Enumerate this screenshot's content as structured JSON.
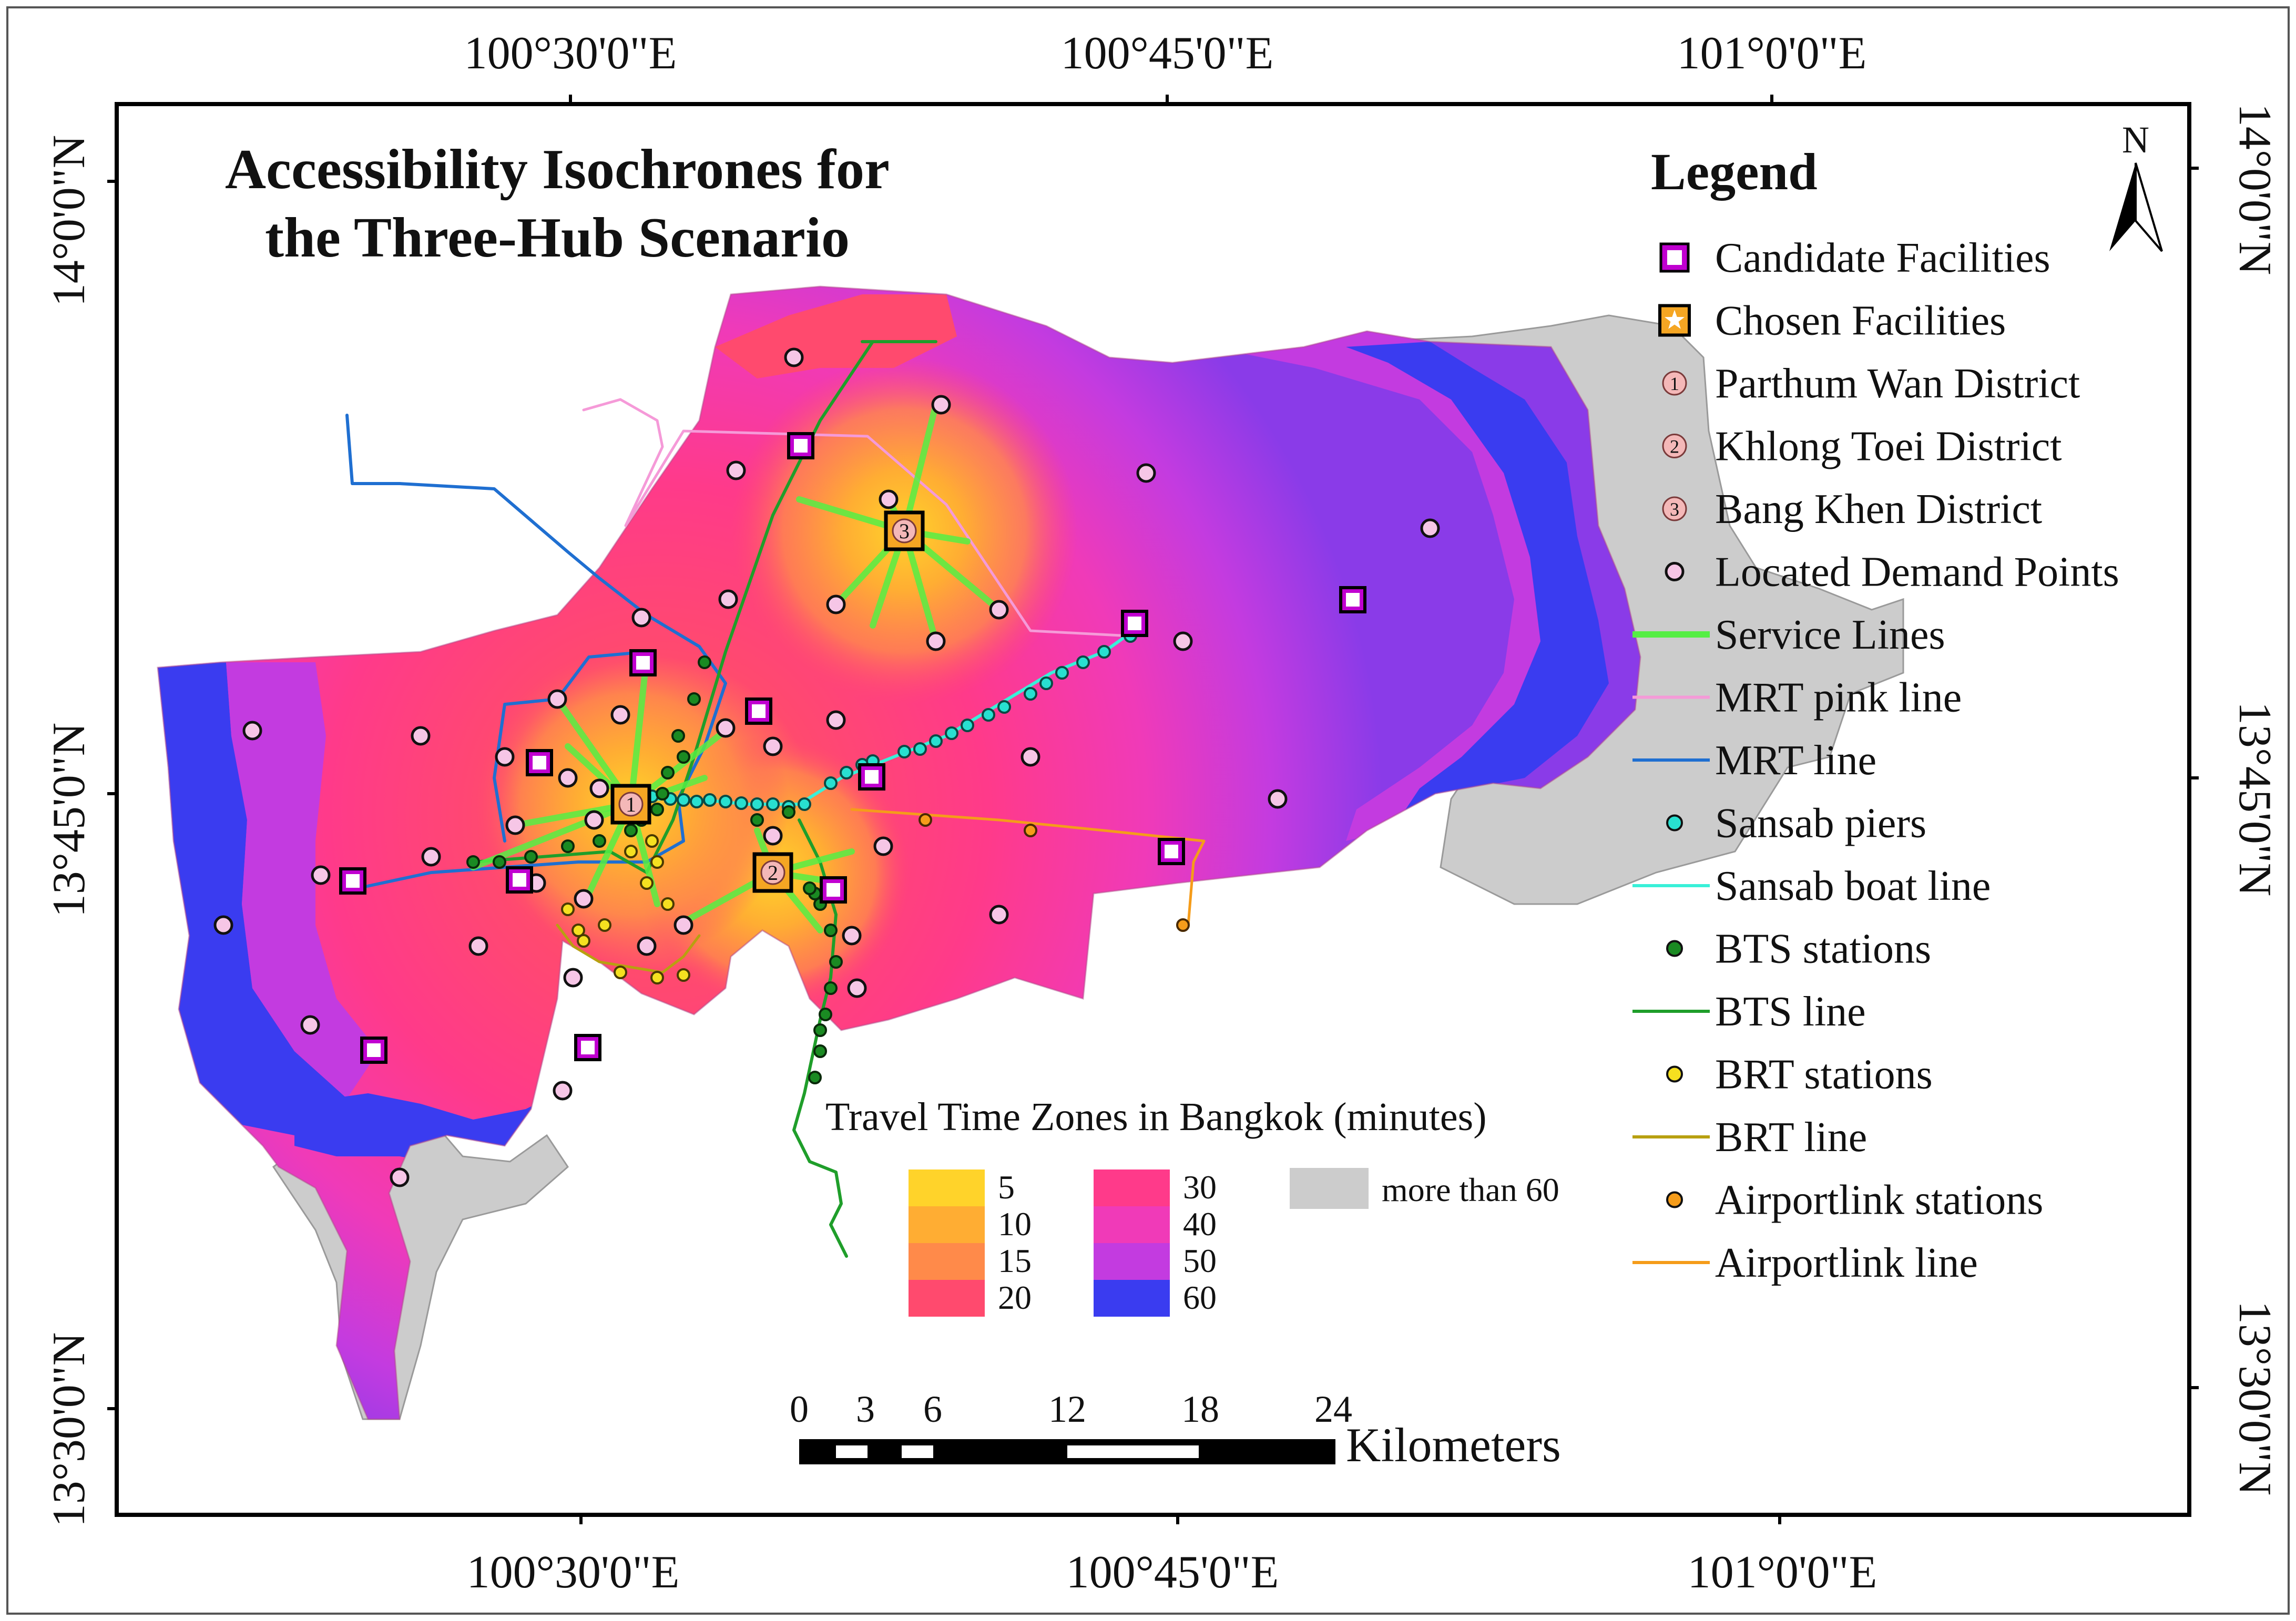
{
  "map": {
    "title_line1": "Accessibility Isochrones for",
    "title_line2": "the Three-Hub Scenario",
    "north_label": "N",
    "axes": {
      "lon_top": [
        "100°30'0\"E",
        "100°45'0\"E",
        "101°0'0\"E"
      ],
      "lon_bottom": [
        "100°30'0\"E",
        "100°45'0\"E",
        "101°0'0\"E"
      ],
      "lat_left": [
        "14°0'0\"N",
        "13°45'0\"N",
        "13°30'0\"N"
      ],
      "lat_right": [
        "14°0'0\"N",
        "13°45'0\"N",
        "13°30'0\"N"
      ]
    },
    "legend": {
      "title": "Legend",
      "items": [
        {
          "label": "Candidate Facilities",
          "symbol": "candidate-square",
          "color": "#c000d0"
        },
        {
          "label": "Chosen Facilities",
          "symbol": "chosen-star-square",
          "color": "#f5a623"
        },
        {
          "label": "Parthum Wan District",
          "symbol": "district-1",
          "marker": "1",
          "color": "#f4b8b8"
        },
        {
          "label": "Khlong Toei District",
          "symbol": "district-2",
          "marker": "2",
          "color": "#f4b8b8"
        },
        {
          "label": "Bang Khen District",
          "symbol": "district-3",
          "marker": "3",
          "color": "#f4b8b8"
        },
        {
          "label": "Located Demand Points",
          "symbol": "demand-dot",
          "color": "#f6c6e6"
        },
        {
          "label": "Service Lines",
          "symbol": "line",
          "color": "#55ee44"
        },
        {
          "label": "MRT pink line",
          "symbol": "line",
          "color": "#f59ad8"
        },
        {
          "label": "MRT line",
          "symbol": "line",
          "color": "#1f6fd1"
        },
        {
          "label": "Sansab piers",
          "symbol": "dot",
          "color": "#28e0d0"
        },
        {
          "label": "Sansab boat line",
          "symbol": "line",
          "color": "#39f0d8"
        },
        {
          "label": "BTS stations",
          "symbol": "dot",
          "color": "#1a8a22"
        },
        {
          "label": "BTS line",
          "symbol": "line",
          "color": "#1f9e2a"
        },
        {
          "label": "BRT stations",
          "symbol": "dot",
          "color": "#f5e020"
        },
        {
          "label": "BRT line",
          "symbol": "line",
          "color": "#b8a010"
        },
        {
          "label": "Airportlink stations",
          "symbol": "dot",
          "color": "#f59c1a"
        },
        {
          "label": "Airportlink line",
          "symbol": "line",
          "color": "#f59c1a"
        }
      ]
    },
    "travel_time": {
      "title": "Travel Time Zones in Bangkok (minutes)",
      "zones": [
        {
          "label": "5",
          "color": "#ffd32a"
        },
        {
          "label": "10",
          "color": "#ffad33"
        },
        {
          "label": "15",
          "color": "#ff8a4a"
        },
        {
          "label": "20",
          "color": "#ff4a6e"
        },
        {
          "label": "30",
          "color": "#ff3a8a"
        },
        {
          "label": "40",
          "color": "#f03ab8"
        },
        {
          "label": "50",
          "color": "#c33be0"
        },
        {
          "label": "60",
          "color": "#3a3cf0"
        }
      ],
      "beyond": {
        "label": "more than 60",
        "color": "#cccccc"
      }
    },
    "scale_bar": {
      "ticks": [
        "0",
        "3",
        "6",
        "12",
        "18",
        "24"
      ],
      "unit": "Kilometers"
    }
  }
}
